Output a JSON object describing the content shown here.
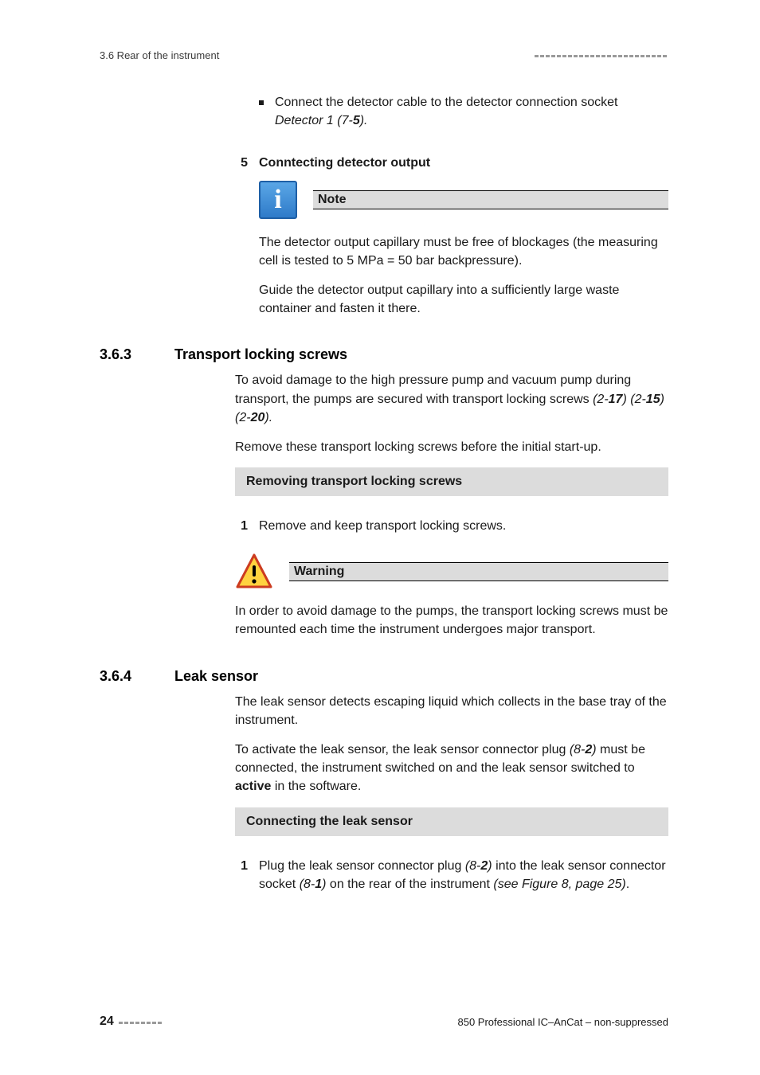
{
  "colors": {
    "text": "#1a1a1a",
    "grey_banner": "#dcdcdc",
    "dash": "#9a9a9a",
    "note_bg_top": "#5aa6e6",
    "note_bg_bottom": "#2f7bc9",
    "note_border": "#1e5fa6",
    "warn_fill": "#ffd23f",
    "warn_border": "#cc3b1f",
    "page_bg": "#ffffff"
  },
  "typography": {
    "body_fontsize_pt": 12,
    "heading_fontsize_pt": 13,
    "footer_fontsize_pt": 10
  },
  "header": {
    "section_ref": "3.6 Rear of the instrument",
    "dash_count": 24
  },
  "top_bullet": {
    "pre": "Connect the detector cable to the detector connection socket ",
    "ital": "Detector 1 (7-",
    "bold": "5",
    "post": ")."
  },
  "step5": {
    "num": "5",
    "title": "Conntecting detector output",
    "note_label": "Note",
    "note_body": "The detector output capillary must be free of blockages (the measuring cell is tested to 5 MPa = 50 bar backpressure).",
    "guide_text": "Guide the detector output capillary into a sufficiently large waste container and fasten it there."
  },
  "section363": {
    "num": "3.6.3",
    "title": "Transport locking screws",
    "p1_pre": "To avoid damage to the high pressure pump and vacuum pump during transport, the pumps are secured with transport locking screws ",
    "refs": [
      {
        "open": "(2-",
        "b": "17",
        "close": ") "
      },
      {
        "open": "(2-",
        "b": "15",
        "close": ")"
      },
      {
        "open": "(2-",
        "b": "20",
        "close": ")."
      }
    ],
    "p2": "Remove these transport locking screws before the initial start-up.",
    "banner": "Removing transport locking screws",
    "step1_num": "1",
    "step1_text": "Remove and keep transport locking screws.",
    "warn_label": "Warning",
    "warn_body": "In order to avoid damage to the pumps, the transport locking screws must be remounted each time the instrument undergoes major transport."
  },
  "section364": {
    "num": "3.6.4",
    "title": "Leak sensor",
    "p1": "The leak sensor detects escaping liquid which collects in the base tray of the instrument.",
    "p2_pre": "To activate the leak sensor, the leak sensor connector plug ",
    "p2_ref_open": "(8-",
    "p2_ref_b": "2",
    "p2_ref_close": ")",
    "p2_mid": " must be connected, the instrument switched on and the leak sensor switched to ",
    "p2_active": "active",
    "p2_post": " in the software.",
    "banner": "Connecting the leak sensor",
    "step1_num": "1",
    "step1_pre": "Plug the leak sensor connector plug ",
    "r1_open": "(8-",
    "r1_b": "2",
    "r1_close": ")",
    "step1_mid": " into the leak sensor connector socket ",
    "r2_open": "(8-",
    "r2_b": "1",
    "r2_close": ")",
    "step1_mid2": " on the rear of the instrument ",
    "step1_see": "(see Figure 8, page 25)",
    "step1_post": "."
  },
  "footer": {
    "page_number": "24",
    "dash_count": 8,
    "doc_title": "850 Professional IC–AnCat – non-suppressed"
  }
}
